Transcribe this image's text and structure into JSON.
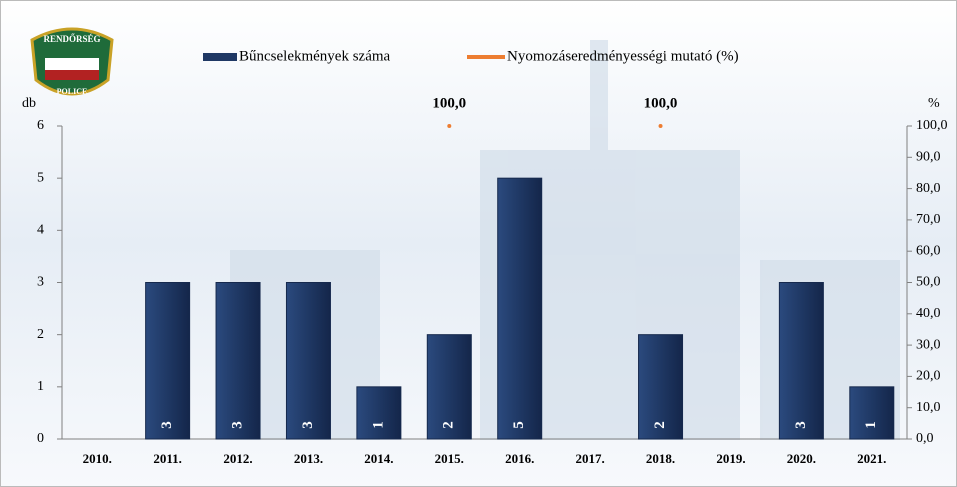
{
  "logo": {
    "top": "RENDŐRSÉG",
    "bottom": "POLICE"
  },
  "chart_data": {
    "type": "bar",
    "categories": [
      "2010.",
      "2011.",
      "2012.",
      "2013.",
      "2014.",
      "2015.",
      "2016.",
      "2017.",
      "2018.",
      "2019.",
      "2020.",
      "2021."
    ],
    "y_label": "db",
    "y2_label": "%",
    "series": [
      {
        "name": "Bűncselekmények száma",
        "color": "#1f3864",
        "values": [
          null,
          3,
          3,
          3,
          1,
          2,
          5,
          null,
          2,
          null,
          3,
          1
        ]
      },
      {
        "name": "Nyomozáseredményességi mutató (%)",
        "color": "#ed7d31",
        "axis": "y2",
        "type": "line",
        "values": [
          null,
          null,
          null,
          null,
          null,
          100,
          null,
          null,
          100,
          null,
          null,
          null
        ],
        "value_labels": [
          null,
          null,
          null,
          null,
          null,
          "100,0",
          null,
          null,
          "100,0",
          null,
          null,
          null
        ]
      }
    ],
    "ylim": [
      0,
      6
    ],
    "yticks": [
      0,
      1,
      2,
      3,
      4,
      5,
      6
    ],
    "y2lim": [
      0,
      100
    ],
    "y2ticks": [
      {
        "value": 0,
        "label": "0,0"
      },
      {
        "value": 10,
        "label": "10,0"
      },
      {
        "value": 20,
        "label": "20,0"
      },
      {
        "value": 30,
        "label": "30,0"
      },
      {
        "value": 40,
        "label": "40,0"
      },
      {
        "value": 50,
        "label": "50,0"
      },
      {
        "value": 60,
        "label": "60,0"
      },
      {
        "value": 70,
        "label": "70,0"
      },
      {
        "value": 80,
        "label": "80,0"
      },
      {
        "value": 90,
        "label": "90,0"
      },
      {
        "value": 100,
        "label": "100,0"
      }
    ]
  }
}
